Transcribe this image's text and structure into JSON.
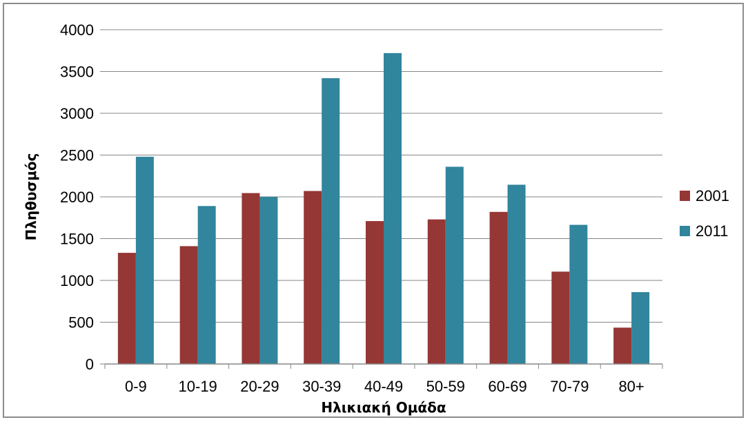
{
  "chart_data": {
    "type": "bar",
    "title": "",
    "xlabel": "Ηλικιακή Ομάδα",
    "ylabel": "Πληθυσμός",
    "categories": [
      "0-9",
      "10-19",
      "20-29",
      "30-39",
      "40-49",
      "50-59",
      "60-69",
      "70-79",
      "80+"
    ],
    "series": [
      {
        "name": "2001",
        "color": "#953735",
        "values": [
          1330,
          1410,
          2045,
          2070,
          1710,
          1730,
          1820,
          1105,
          435
        ]
      },
      {
        "name": "2011",
        "color": "#31859c",
        "values": [
          2480,
          1890,
          2000,
          3420,
          3720,
          2360,
          2145,
          1665,
          860
        ]
      }
    ],
    "ylim": [
      0,
      4000
    ],
    "yticks": [
      0,
      500,
      1000,
      1500,
      2000,
      2500,
      3000,
      3500,
      4000
    ],
    "grid": true,
    "legend_position": "right"
  }
}
